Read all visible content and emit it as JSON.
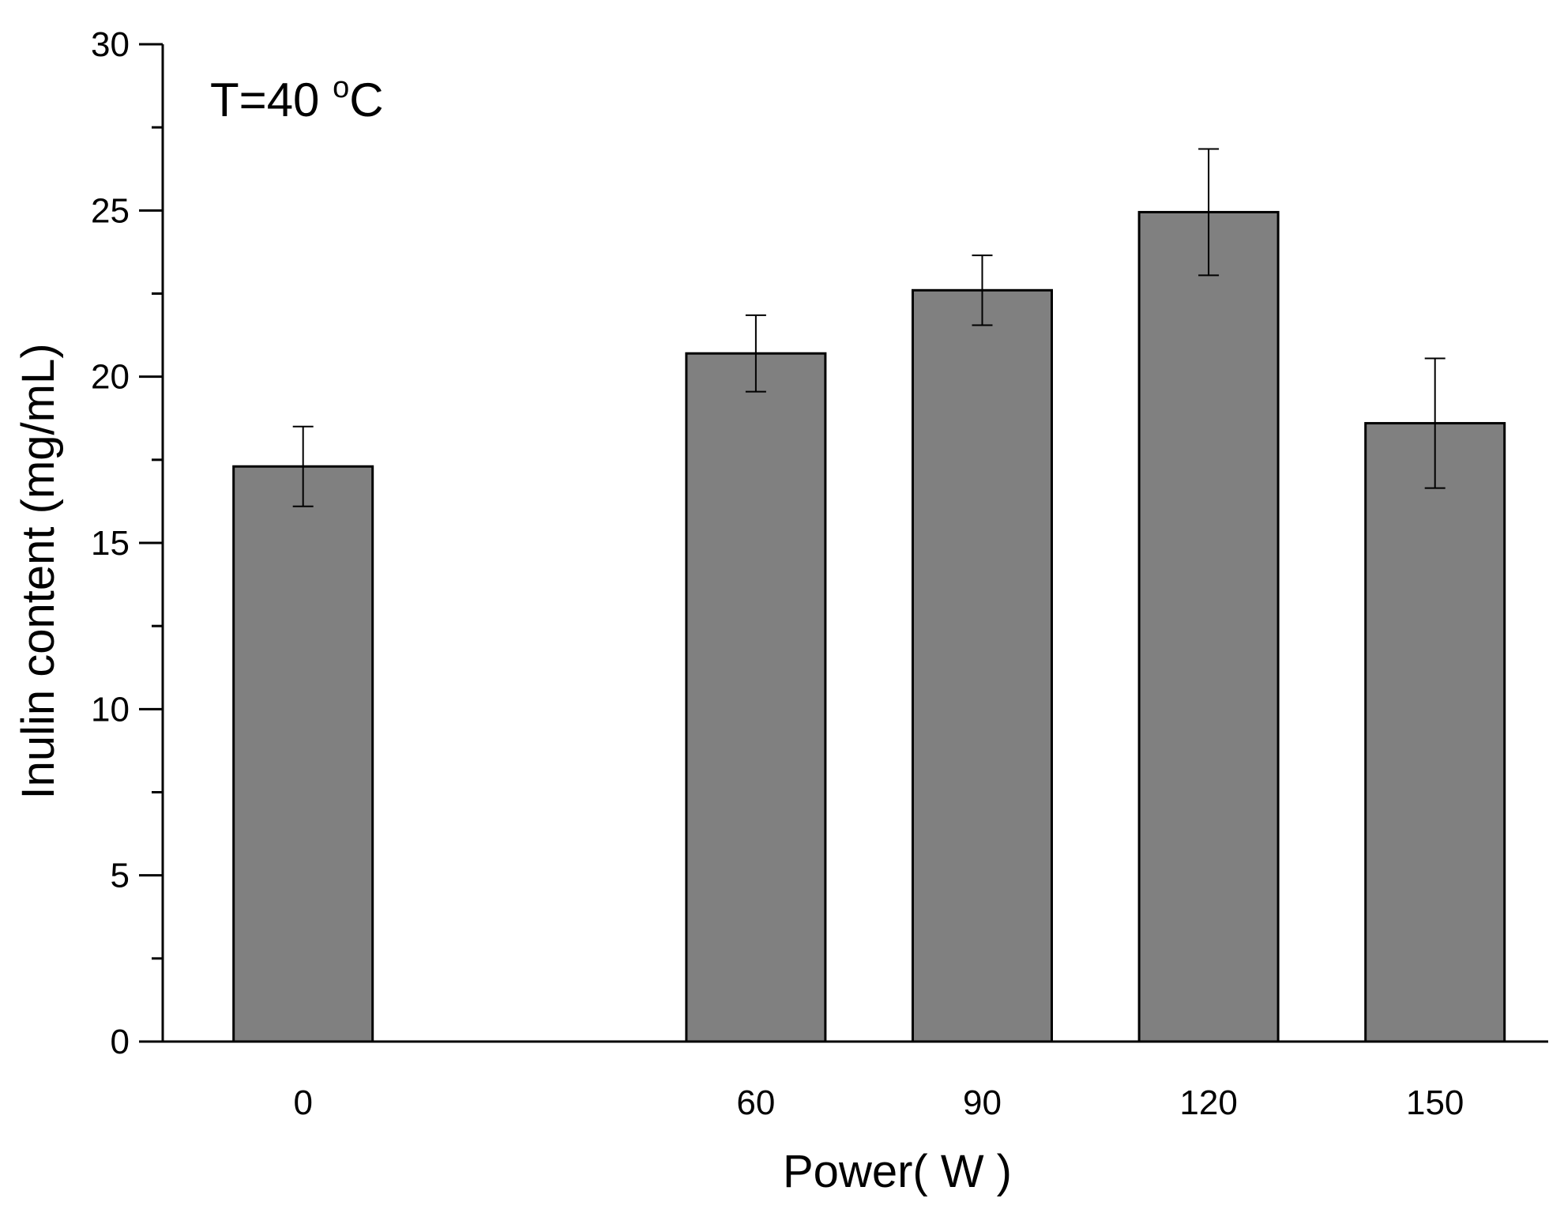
{
  "chart_data": {
    "type": "bar",
    "title": "",
    "xlabel": "Power( W )",
    "ylabel": "Inulin content (mg/mL)",
    "x": [
      0,
      60,
      90,
      120,
      150
    ],
    "categories": [
      "0",
      "60",
      "90",
      "120",
      "150"
    ],
    "values": [
      17.3,
      20.7,
      22.6,
      24.95,
      18.6
    ],
    "errors": [
      1.2,
      1.15,
      1.05,
      1.9,
      1.95
    ],
    "ylim": [
      0,
      30
    ],
    "yticks": [
      0,
      5,
      10,
      15,
      20,
      25,
      30
    ],
    "ytick_labels": [
      "0",
      "5",
      "10",
      "15",
      "20",
      "25",
      "30"
    ],
    "xlim": [
      -18.6,
      165
    ],
    "bar_color": "#808080",
    "grid": false,
    "annotation": {
      "prefix": "T=40 ",
      "superscript": "o",
      "suffix": "C"
    }
  }
}
